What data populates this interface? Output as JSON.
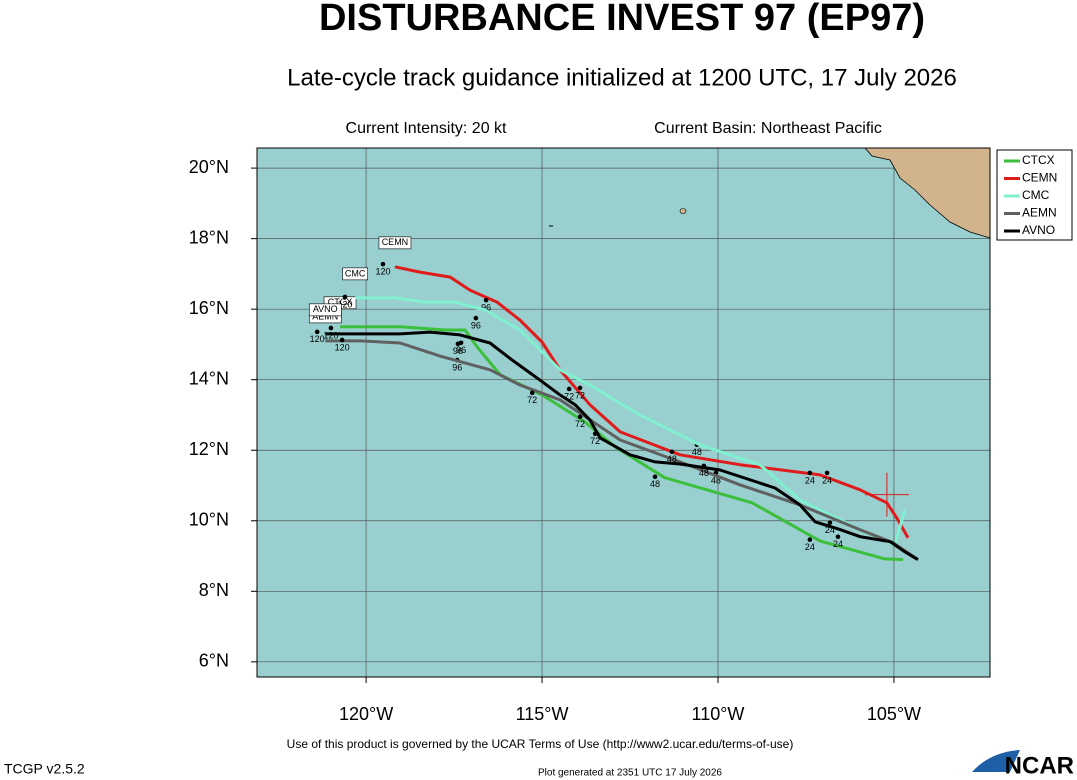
{
  "chart_data": {
    "type": "line",
    "title": "DISTURBANCE INVEST 97 (EP97)",
    "subtitle": "Late-cycle track guidance initialized at 1200 UTC, 17 July 2026",
    "info_left": "Current Intensity: 20 kt",
    "info_right": "Current Basin: Northeast Pacific",
    "footer": "Use of this product is governed by the UCAR Terms of Use (http://www2.ucar.edu/terms-of-use)",
    "version": "TCGP v2.5.2",
    "generated": "Plot generated at 2351 UTC   17 July 2026",
    "logo": "NCAR",
    "xlim": [
      -123.1,
      -102.27
    ],
    "ylim": [
      5.57,
      20.57
    ],
    "xticks": [
      {
        "value": -120,
        "label": "120°W"
      },
      {
        "value": -115,
        "label": "115°W"
      },
      {
        "value": -110,
        "label": "110°W"
      },
      {
        "value": -105,
        "label": "105°W"
      }
    ],
    "yticks": [
      {
        "value": 6,
        "label": "6°N"
      },
      {
        "value": 8,
        "label": "8°N"
      },
      {
        "value": 10,
        "label": "10°N"
      },
      {
        "value": 12,
        "label": "12°N"
      },
      {
        "value": 14,
        "label": "14°N"
      },
      {
        "value": 16,
        "label": "16°N"
      },
      {
        "value": 18,
        "label": "18°N"
      },
      {
        "value": 20,
        "label": "20°N"
      }
    ],
    "grid": true,
    "legend": "top-right",
    "current_position": {
      "x": -105.2,
      "y": 10.74
    },
    "series": [
      {
        "name": "CTCX",
        "color": "#3cbf3c",
        "x": [
          -104.74,
          -105.26,
          -107.1,
          -109.03,
          -111.51,
          -112.93,
          -113.78,
          -115.0,
          -116.19,
          -116.82,
          -117.19,
          -117.76,
          -119.03,
          -120.74
        ],
        "values": [
          8.9,
          8.92,
          9.43,
          10.51,
          11.22,
          12.1,
          12.8,
          13.57,
          14.14,
          14.9,
          15.41,
          15.41,
          15.5,
          15.5
        ],
        "annotations": [
          {
            "label": "24",
            "x": -107.39,
            "y": 9.24
          },
          {
            "label": "48",
            "x": -111.79,
            "y": 11.02
          },
          {
            "label": "72",
            "x": -113.49,
            "y": 12.24
          },
          {
            "label": "96",
            "x": -117.41,
            "y": 14.33
          },
          {
            "label": "120",
            "x": -121.39,
            "y": 15.13
          }
        ]
      },
      {
        "name": "CEMN",
        "color": "#e01b1b",
        "x": [
          -104.6,
          -104.89,
          -105.2,
          -105.97,
          -107.1,
          -109.38,
          -111.08,
          -112.78,
          -113.64,
          -114.49,
          -115.0,
          -115.63,
          -116.28,
          -117.05,
          -117.61,
          -118.47,
          -119.18
        ],
        "values": [
          9.52,
          10.03,
          10.51,
          10.88,
          11.3,
          11.59,
          11.87,
          12.52,
          13.29,
          14.28,
          15.07,
          15.69,
          16.2,
          16.54,
          16.91,
          17.05,
          17.2
        ],
        "annotations": [
          {
            "label": "24",
            "x": -106.9,
            "y": 11.13
          },
          {
            "label": "48",
            "x": -110.6,
            "y": 11.93
          },
          {
            "label": "72",
            "x": -113.92,
            "y": 13.54
          },
          {
            "label": "96",
            "x": -116.59,
            "y": 16.03
          },
          {
            "label": "120",
            "x": -119.52,
            "y": 17.05
          }
        ]
      },
      {
        "name": "CMC",
        "color": "#80f0d0",
        "x": [
          -104.69,
          -104.97,
          -105.97,
          -107.67,
          -108.81,
          -110.51,
          -112.22,
          -113.64,
          -114.49,
          -114.91,
          -115.63,
          -116.62,
          -117.47,
          -118.32,
          -119.18,
          -120.31
        ],
        "values": [
          10.31,
          9.32,
          9.75,
          10.59,
          11.59,
          12.15,
          13.0,
          13.85,
          14.28,
          14.7,
          15.41,
          15.98,
          16.2,
          16.2,
          16.32,
          16.32
        ],
        "annotations": [
          {
            "label": "24",
            "x": -107.39,
            "y": 11.13
          },
          {
            "label": "48",
            "x": -110.06,
            "y": 11.13
          },
          {
            "label": "72",
            "x": -114.23,
            "y": 13.51
          },
          {
            "label": "96",
            "x": -116.88,
            "y": 15.52
          },
          {
            "label": "120",
            "x": -120.6,
            "y": 16.12
          }
        ]
      },
      {
        "name": "AEMN",
        "color": "#606060",
        "x": [
          -104.32,
          -105.03,
          -105.97,
          -107.67,
          -109.38,
          -111.08,
          -112.78,
          -114.49,
          -115.63,
          -116.48,
          -117.9,
          -119.03,
          -120.17,
          -121.16
        ],
        "values": [
          8.9,
          9.38,
          9.75,
          10.45,
          11.02,
          11.67,
          12.29,
          13.43,
          13.85,
          14.28,
          14.67,
          15.04,
          15.1,
          15.1
        ],
        "annotations": [
          {
            "label": "24",
            "x": -106.59,
            "y": 9.32
          },
          {
            "label": "48",
            "x": -110.4,
            "y": 11.33
          },
          {
            "label": "72",
            "x": -115.28,
            "y": 13.4
          },
          {
            "label": "96",
            "x": -117.39,
            "y": 14.79
          },
          {
            "label": "120",
            "x": -120.68,
            "y": 14.9
          }
        ]
      },
      {
        "name": "AVNO",
        "color": "#000000",
        "x": [
          -104.32,
          -104.69,
          -105.11,
          -105.97,
          -106.53,
          -107.24,
          -107.67,
          -108.38,
          -109.94,
          -111.08,
          -111.79,
          -112.5,
          -113.35,
          -113.64,
          -114.06,
          -114.49,
          -115.06,
          -115.85,
          -116.48,
          -117.33,
          -118.18,
          -119.03,
          -121.16
        ],
        "values": [
          8.9,
          9.12,
          9.41,
          9.55,
          9.75,
          9.97,
          10.45,
          10.93,
          11.44,
          11.61,
          11.67,
          11.87,
          12.35,
          12.86,
          13.29,
          13.57,
          13.99,
          14.56,
          15.04,
          15.27,
          15.35,
          15.3,
          15.3
        ],
        "annotations": [
          {
            "label": "24",
            "x": -106.82,
            "y": 9.72
          },
          {
            "label": "48",
            "x": -111.31,
            "y": 11.73
          },
          {
            "label": "72",
            "x": -113.92,
            "y": 12.72
          },
          {
            "label": "96",
            "x": -117.3,
            "y": 14.82
          },
          {
            "label": "120",
            "x": -121.0,
            "y": 15.24
          }
        ]
      }
    ]
  }
}
